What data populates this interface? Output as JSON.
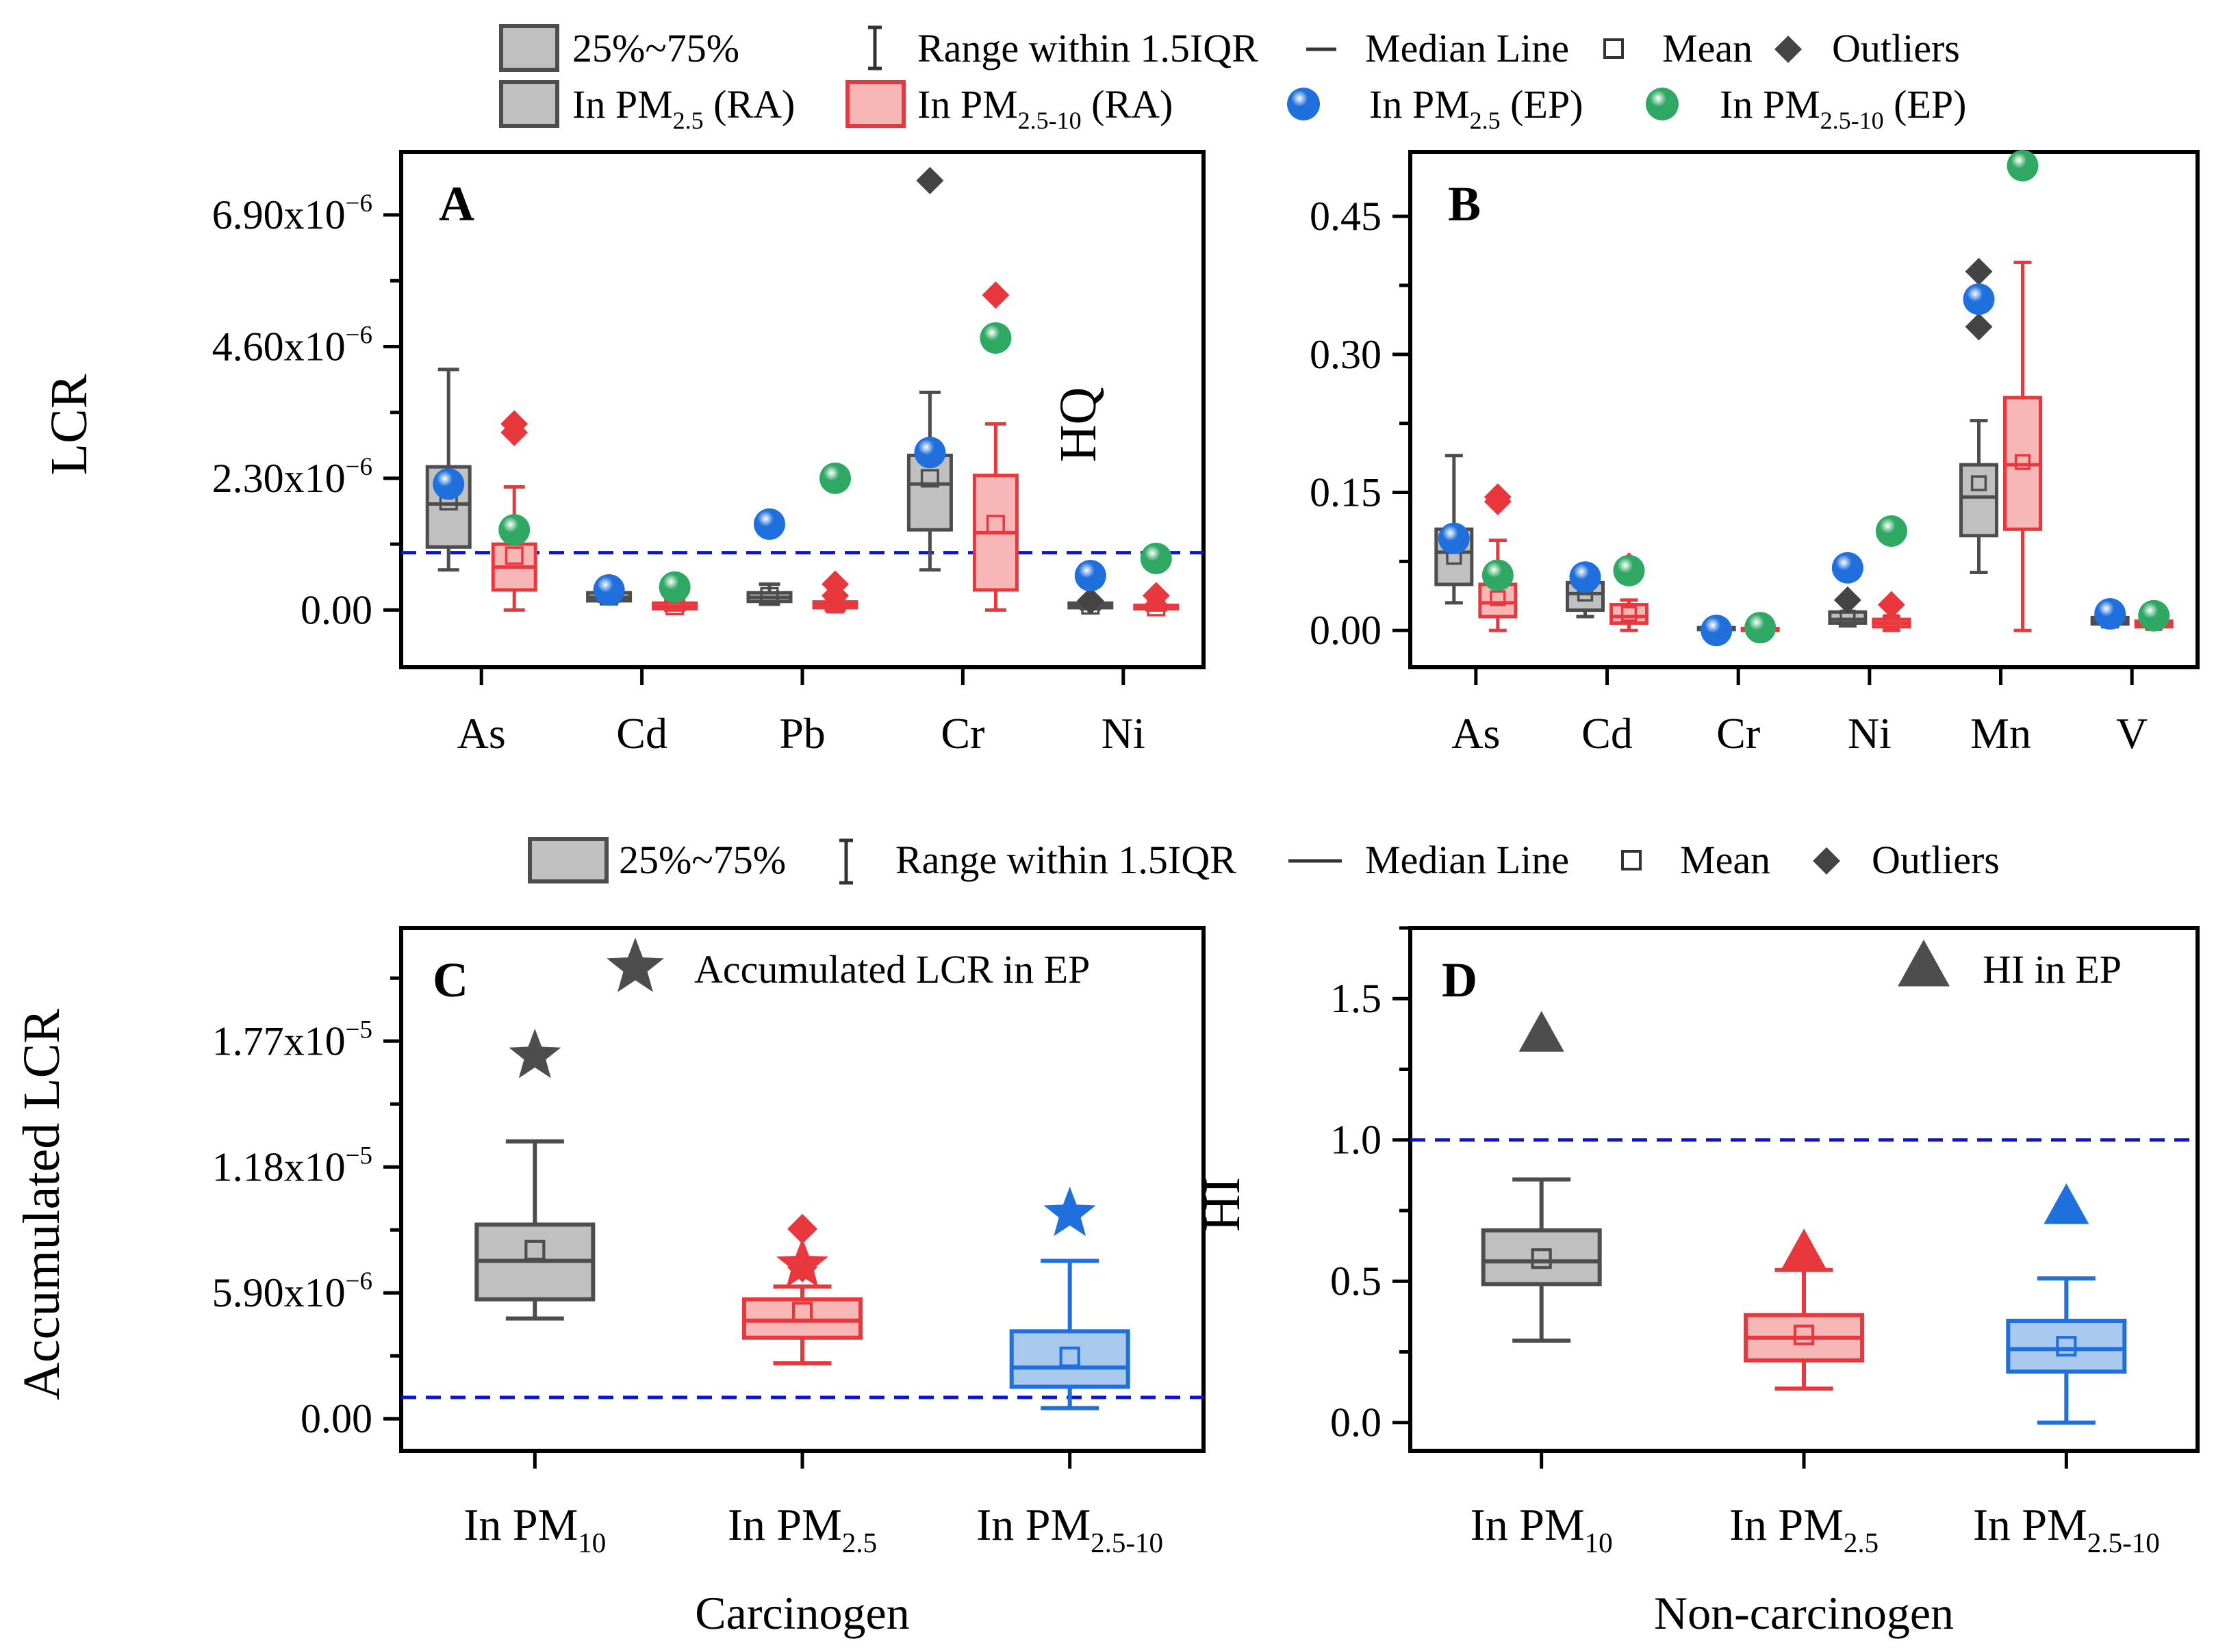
{
  "colors": {
    "ra25_fill": "#c0c0c0",
    "ra25_stroke": "#4d4d4d",
    "ra2510_fill": "#f7b7b7",
    "ra2510_stroke": "#e8383d",
    "blue": "#1f6fdc",
    "blue_fill": "#a9c9ef",
    "green": "#2fa864",
    "panel_letter": "#ee1111",
    "threshold": "#0a14d8"
  },
  "legend_top": {
    "row1": [
      "25%~75%",
      "Range within 1.5IQR",
      "Median Line",
      "Mean",
      "Outliers"
    ],
    "row2": [
      {
        "pre": "In PM",
        "sub": "2.5",
        "post": "  (RA)"
      },
      {
        "pre": "In PM",
        "sub": "2.5-10",
        "post": " (RA)"
      },
      {
        "pre": "In PM",
        "sub": "2.5",
        "post": " (EP)"
      },
      {
        "pre": "In PM",
        "sub": "2.5-10",
        "post": " (EP)"
      }
    ]
  },
  "legend_mid": [
    "25%~75%",
    "Range within 1.5IQR",
    "Median Line",
    "Mean",
    "Outliers"
  ],
  "chart_data": [
    {
      "panel": "A",
      "type": "box",
      "ylabel": "LCR",
      "ylim": [
        -1e-06,
        8e-06
      ],
      "yticks": [
        0,
        2.3e-06,
        4.6e-06,
        6.9e-06
      ],
      "ytick_labels": [
        {
          "base": "0.00",
          "exp": ""
        },
        {
          "base": "2.30x10",
          "exp": "−6"
        },
        {
          "base": "4.60x10",
          "exp": "−6"
        },
        {
          "base": "6.90x10",
          "exp": "−6"
        }
      ],
      "threshold": 1e-06,
      "categories": [
        "As",
        "Cd",
        "Pb",
        "Cr",
        "Ni"
      ],
      "series": [
        {
          "name": "In PM2.5 (RA)",
          "boxes": [
            {
              "min": 7e-07,
              "q1": 1.1e-06,
              "med": 1.85e-06,
              "q3": 2.5e-06,
              "max": 4.2e-06,
              "mean": 1.9e-06,
              "outliers": []
            },
            {
              "min": 1.5e-07,
              "q1": 1.6e-07,
              "med": 2.2e-07,
              "q3": 3e-07,
              "max": 3.5e-07,
              "mean": 2.4e-07,
              "outliers": []
            },
            {
              "min": 1e-07,
              "q1": 1.5e-07,
              "med": 2.2e-07,
              "q3": 3e-07,
              "max": 4.5e-07,
              "mean": 2.4e-07,
              "outliers": []
            },
            {
              "min": 7e-07,
              "q1": 1.4e-06,
              "med": 2.2e-06,
              "q3": 2.7e-06,
              "max": 3.8e-06,
              "mean": 2.3e-06,
              "outliers": [
                7.5e-06
              ]
            },
            {
              "min": 2e-08,
              "q1": 4e-08,
              "med": 8e-08,
              "q3": 1.2e-07,
              "max": 1.5e-07,
              "mean": 8e-08,
              "outliers": [
                1.6e-07
              ]
            }
          ]
        },
        {
          "name": "In PM2.5-10 (RA)",
          "boxes": [
            {
              "min": 0.0,
              "q1": 3.5e-07,
              "med": 7.5e-07,
              "q3": 1.15e-06,
              "max": 2.15e-06,
              "mean": 9.5e-07,
              "outliers": [
                3.1e-06,
                3.25e-06
              ]
            },
            {
              "min": 0.0,
              "q1": 2e-08,
              "med": 6e-08,
              "q3": 1.2e-07,
              "max": 1.6e-07,
              "mean": 7e-08,
              "outliers": [
                4e-07
              ]
            },
            {
              "min": 0.0,
              "q1": 4e-08,
              "med": 9e-08,
              "q3": 1.4e-07,
              "max": 2e-07,
              "mean": 1e-07,
              "outliers": [
                2.5e-07,
                4.5e-07
              ]
            },
            {
              "min": 0.0,
              "q1": 3.5e-07,
              "med": 1.35e-06,
              "q3": 2.35e-06,
              "max": 3.25e-06,
              "mean": 1.5e-06,
              "outliers": [
                5.5e-06
              ]
            },
            {
              "min": 0.0,
              "q1": 2e-08,
              "med": 5e-08,
              "q3": 8e-08,
              "max": 1e-07,
              "mean": 5e-08,
              "outliers": [
                2.5e-07
              ]
            }
          ]
        }
      ],
      "ep_pm25": [
        2.2e-06,
        3.5e-07,
        1.5e-06,
        2.75e-06,
        6e-07
      ],
      "ep_pm2510": [
        1.4e-06,
        4e-07,
        2.3e-06,
        4.75e-06,
        9e-07
      ]
    },
    {
      "panel": "B",
      "type": "box",
      "ylabel": "HQ",
      "ylim": [
        -0.04,
        0.52
      ],
      "yticks": [
        0.0,
        0.15,
        0.3,
        0.45
      ],
      "ytick_labels": [
        {
          "base": "0.00",
          "exp": ""
        },
        {
          "base": "0.15",
          "exp": ""
        },
        {
          "base": "0.30",
          "exp": ""
        },
        {
          "base": "0.45",
          "exp": ""
        }
      ],
      "categories": [
        "As",
        "Cd",
        "Cr",
        "Ni",
        "Mn",
        "V"
      ],
      "series": [
        {
          "name": "In PM2.5 (RA)",
          "boxes": [
            {
              "min": 0.03,
              "q1": 0.05,
              "med": 0.085,
              "q3": 0.11,
              "max": 0.19,
              "mean": 0.08,
              "outliers": []
            },
            {
              "min": 0.015,
              "q1": 0.022,
              "med": 0.04,
              "q3": 0.052,
              "max": 0.058,
              "mean": 0.04,
              "outliers": []
            },
            {
              "min": 0.0,
              "q1": 0.001,
              "med": 0.002,
              "q3": 0.003,
              "max": 0.004,
              "mean": 0.002,
              "outliers": []
            },
            {
              "min": 0.005,
              "q1": 0.008,
              "med": 0.012,
              "q3": 0.02,
              "max": 0.03,
              "mean": 0.014,
              "outliers": [
                0.033
              ]
            },
            {
              "min": 0.063,
              "q1": 0.103,
              "med": 0.145,
              "q3": 0.18,
              "max": 0.228,
              "mean": 0.16,
              "outliers": [
                0.33,
                0.39
              ]
            },
            {
              "min": 0.004,
              "q1": 0.007,
              "med": 0.01,
              "q3": 0.014,
              "max": 0.017,
              "mean": 0.011,
              "outliers": []
            }
          ]
        },
        {
          "name": "In PM2.5-10 (RA)",
          "boxes": [
            {
              "min": 0.0,
              "q1": 0.015,
              "med": 0.03,
              "q3": 0.05,
              "max": 0.098,
              "mean": 0.035,
              "outliers": [
                0.14,
                0.145
              ]
            },
            {
              "min": 0.0,
              "q1": 0.008,
              "med": 0.015,
              "q3": 0.028,
              "max": 0.033,
              "mean": 0.018,
              "outliers": [
                0.07
              ]
            },
            {
              "min": 0.0,
              "q1": 0.0,
              "med": 0.001,
              "q3": 0.002,
              "max": 0.002,
              "mean": 0.001,
              "outliers": []
            },
            {
              "min": 0.0,
              "q1": 0.004,
              "med": 0.008,
              "q3": 0.012,
              "max": 0.015,
              "mean": 0.009,
              "outliers": [
                0.028
              ]
            },
            {
              "min": 0.0,
              "q1": 0.11,
              "med": 0.18,
              "q3": 0.253,
              "max": 0.4,
              "mean": 0.183,
              "outliers": []
            },
            {
              "min": 0.002,
              "q1": 0.004,
              "med": 0.007,
              "q3": 0.01,
              "max": 0.012,
              "mean": 0.008,
              "outliers": []
            }
          ]
        }
      ],
      "ep_pm25": [
        0.1,
        0.058,
        0.0,
        0.068,
        0.36,
        0.018
      ],
      "ep_pm2510": [
        0.06,
        0.065,
        0.003,
        0.108,
        0.505,
        0.016
      ]
    },
    {
      "panel": "C",
      "type": "box",
      "xlabel": "Carcinogen",
      "ylabel": "Accumulated LCR",
      "ylim": [
        -1.5e-06,
        2.3e-05
      ],
      "yticks": [
        0,
        5.9e-06,
        1.18e-05,
        1.77e-05
      ],
      "ytick_labels": [
        {
          "base": "0.00",
          "exp": ""
        },
        {
          "base": "5.90x10",
          "exp": "−6"
        },
        {
          "base": "1.18x10",
          "exp": "−5"
        },
        {
          "base": "1.77x10",
          "exp": "−5"
        }
      ],
      "threshold": 1e-06,
      "categories": [
        {
          "pre": "In PM",
          "sub": "10"
        },
        {
          "pre": "In PM",
          "sub": "2.5"
        },
        {
          "pre": "In PM",
          "sub": "2.5-10"
        }
      ],
      "styles": [
        "grey",
        "red",
        "blue"
      ],
      "boxes": [
        {
          "min": 4.7e-06,
          "q1": 5.6e-06,
          "med": 7.4e-06,
          "q3": 9.1e-06,
          "max": 1.3e-05,
          "mean": 7.9e-06,
          "outliers": []
        },
        {
          "min": 2.6e-06,
          "q1": 3.8e-06,
          "med": 4.6e-06,
          "q3": 5.6e-06,
          "max": 6.2e-06,
          "mean": 5e-06,
          "outliers": [
            7.1e-06,
            8.9e-06
          ]
        },
        {
          "min": 5e-07,
          "q1": 1.5e-06,
          "med": 2.4e-06,
          "q3": 4.1e-06,
          "max": 7.4e-06,
          "mean": 2.9e-06,
          "outliers": []
        }
      ],
      "ep_accumulated_lcr": [
        1.7e-05,
        7.2e-06,
        9.6e-06
      ],
      "legend_ep": "Accumulated LCR in EP"
    },
    {
      "panel": "D",
      "type": "box",
      "xlabel": "Non-carcinogen",
      "ylabel": "HI",
      "ylim": [
        -0.1,
        1.75
      ],
      "yticks": [
        0.0,
        0.5,
        1.0,
        1.5
      ],
      "ytick_labels": [
        {
          "base": "0.0",
          "exp": ""
        },
        {
          "base": "0.5",
          "exp": ""
        },
        {
          "base": "1.0",
          "exp": ""
        },
        {
          "base": "1.5",
          "exp": ""
        }
      ],
      "threshold": 1.0,
      "categories": [
        {
          "pre": "In PM",
          "sub": "10"
        },
        {
          "pre": "In PM",
          "sub": "2.5"
        },
        {
          "pre": "In PM",
          "sub": "2.5-10"
        }
      ],
      "styles": [
        "grey",
        "red",
        "blue"
      ],
      "boxes": [
        {
          "min": 0.29,
          "q1": 0.49,
          "med": 0.57,
          "q3": 0.68,
          "max": 0.86,
          "mean": 0.58,
          "outliers": []
        },
        {
          "min": 0.12,
          "q1": 0.22,
          "med": 0.3,
          "q3": 0.38,
          "max": 0.54,
          "mean": 0.31,
          "outliers": []
        },
        {
          "min": 0.0,
          "q1": 0.18,
          "med": 0.26,
          "q3": 0.36,
          "max": 0.51,
          "mean": 0.27,
          "outliers": []
        }
      ],
      "ep_hi": [
        1.37,
        0.6,
        0.76
      ],
      "legend_ep": "HI in EP"
    }
  ]
}
